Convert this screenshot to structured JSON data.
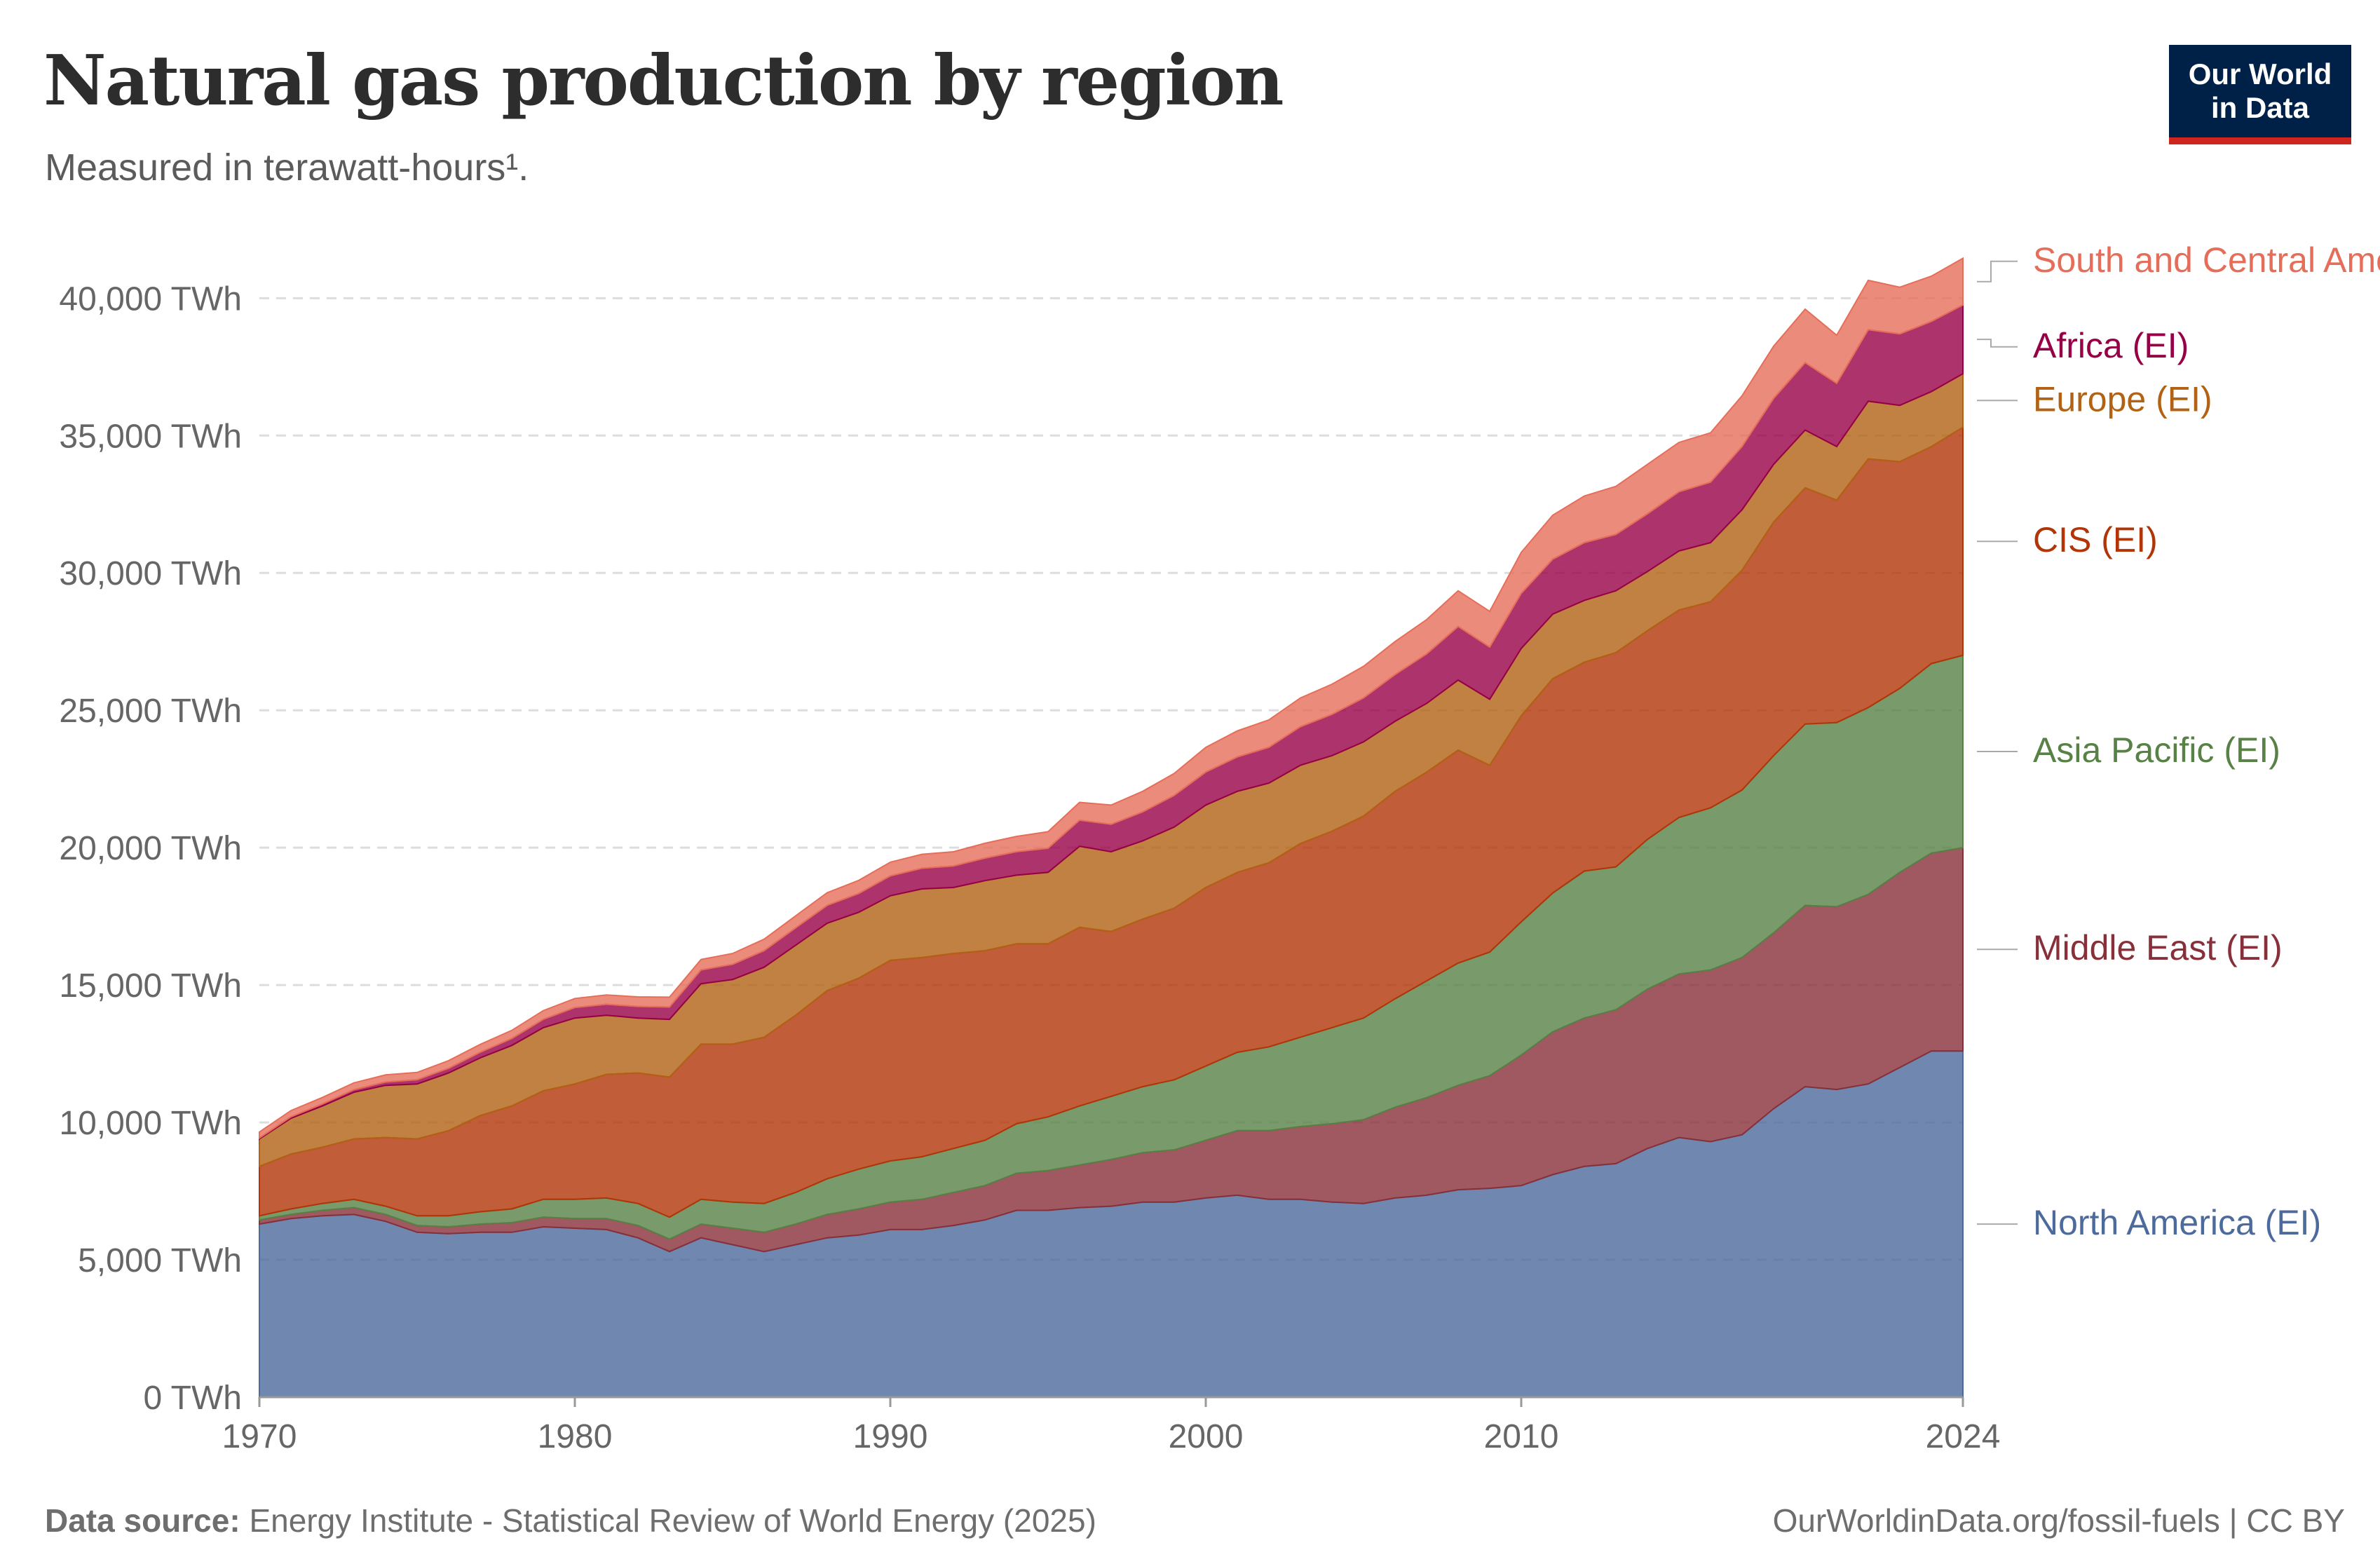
{
  "header": {
    "title": "Natural gas production by region",
    "subtitle": "Measured in terawatt-hours¹.",
    "logo_line1": "Our World",
    "logo_line2": "in Data"
  },
  "footer": {
    "source_label": "Data source:",
    "source_text": "Energy Institute - Statistical Review of World Energy (2025)",
    "url": "OurWorldinData.org/fossil-fuels | CC BY"
  },
  "chart_data": {
    "type": "area",
    "stacked": true,
    "title": "Natural gas production by region",
    "subtitle": "Measured in terawatt-hours¹.",
    "y_unit": "TWh",
    "ylim": [
      0,
      42000
    ],
    "y_ticks": [
      0,
      5000,
      10000,
      15000,
      20000,
      25000,
      30000,
      35000,
      40000
    ],
    "y_tick_labels": [
      "0 TWh",
      "5,000 TWh",
      "10,000 TWh",
      "15,000 TWh",
      "20,000 TWh",
      "25,000 TWh",
      "30,000 TWh",
      "35,000 TWh",
      "40,000 TWh"
    ],
    "xlim": [
      1970,
      2024
    ],
    "x_ticks": [
      1970,
      1980,
      1990,
      2000,
      2010,
      2024
    ],
    "x_tick_labels": [
      "1970",
      "1980",
      "1990",
      "2000",
      "2010",
      "2024"
    ],
    "grid": "horizontal-dashed",
    "legend": "right, labels aligned to series",
    "x": [
      1970,
      1971,
      1972,
      1973,
      1974,
      1975,
      1976,
      1977,
      1978,
      1979,
      1980,
      1981,
      1982,
      1983,
      1984,
      1985,
      1986,
      1987,
      1988,
      1989,
      1990,
      1991,
      1992,
      1993,
      1994,
      1995,
      1996,
      1997,
      1998,
      1999,
      2000,
      2001,
      2002,
      2003,
      2004,
      2005,
      2006,
      2007,
      2008,
      2009,
      2010,
      2011,
      2012,
      2013,
      2014,
      2015,
      2016,
      2017,
      2018,
      2019,
      2020,
      2021,
      2022,
      2023,
      2024
    ],
    "series": [
      {
        "name": "North America (EI)",
        "color": "#4c6a9c",
        "values": [
          6300,
          6500,
          6600,
          6650,
          6400,
          6000,
          5950,
          6000,
          6000,
          6200,
          6150,
          6100,
          5800,
          5300,
          5800,
          5550,
          5300,
          5550,
          5800,
          5900,
          6100,
          6100,
          6250,
          6450,
          6800,
          6800,
          6900,
          6950,
          7100,
          7100,
          7250,
          7350,
          7200,
          7200,
          7100,
          7050,
          7250,
          7350,
          7550,
          7600,
          7700,
          8100,
          8400,
          8500,
          9050,
          9450,
          9300,
          9550,
          10500,
          11300,
          11200,
          11400,
          12000,
          12600,
          12600
        ]
      },
      {
        "name": "Middle East (EI)",
        "color": "#883039",
        "values": [
          150,
          150,
          200,
          250,
          250,
          250,
          250,
          300,
          350,
          350,
          350,
          400,
          450,
          450,
          500,
          600,
          700,
          750,
          850,
          950,
          1000,
          1100,
          1200,
          1250,
          1350,
          1450,
          1550,
          1700,
          1800,
          1900,
          2100,
          2350,
          2500,
          2650,
          2850,
          3050,
          3300,
          3550,
          3800,
          4100,
          4750,
          5200,
          5400,
          5600,
          5800,
          5950,
          6250,
          6450,
          6400,
          6600,
          6650,
          6900,
          7100,
          7200,
          7400
        ]
      },
      {
        "name": "Asia Pacific (EI)",
        "color": "#578145",
        "values": [
          150,
          200,
          250,
          300,
          300,
          350,
          400,
          450,
          500,
          650,
          700,
          750,
          800,
          800,
          900,
          950,
          1050,
          1150,
          1300,
          1450,
          1500,
          1550,
          1600,
          1650,
          1800,
          1950,
          2150,
          2300,
          2400,
          2550,
          2700,
          2850,
          3050,
          3250,
          3500,
          3700,
          3950,
          4250,
          4450,
          4500,
          4850,
          5050,
          5350,
          5200,
          5450,
          5700,
          5900,
          6100,
          6450,
          6600,
          6700,
          6800,
          6700,
          6900,
          7000
        ]
      },
      {
        "name": "CIS (EI)",
        "color": "#b13507",
        "values": [
          1800,
          2000,
          2050,
          2200,
          2500,
          2800,
          3100,
          3500,
          3750,
          3950,
          4200,
          4500,
          4750,
          5100,
          5650,
          5750,
          6050,
          6450,
          6850,
          6950,
          7300,
          7250,
          7100,
          6900,
          6550,
          6300,
          6500,
          6000,
          6100,
          6250,
          6500,
          6550,
          6700,
          7050,
          7150,
          7350,
          7550,
          7600,
          7750,
          6800,
          7500,
          7800,
          7600,
          7800,
          7600,
          7550,
          7500,
          8000,
          8500,
          8600,
          8100,
          9050,
          8250,
          7900,
          8300
        ]
      },
      {
        "name": "Europe (EI)",
        "color": "#b16214",
        "values": [
          1000,
          1300,
          1500,
          1700,
          1900,
          2000,
          2100,
          2100,
          2200,
          2300,
          2400,
          2150,
          2000,
          2100,
          2200,
          2350,
          2550,
          2550,
          2450,
          2400,
          2350,
          2500,
          2400,
          2550,
          2500,
          2600,
          2950,
          2900,
          2850,
          2950,
          3000,
          2950,
          2900,
          2850,
          2750,
          2700,
          2550,
          2500,
          2550,
          2400,
          2450,
          2350,
          2250,
          2250,
          2150,
          2150,
          2150,
          2200,
          2100,
          2100,
          1950,
          2100,
          2050,
          2000,
          1950
        ]
      },
      {
        "name": "Africa (EI)",
        "color": "#970046",
        "values": [
          30,
          50,
          70,
          90,
          120,
          150,
          170,
          200,
          250,
          300,
          380,
          400,
          420,
          450,
          500,
          550,
          600,
          630,
          650,
          680,
          720,
          750,
          780,
          820,
          850,
          880,
          950,
          1000,
          1050,
          1150,
          1200,
          1250,
          1300,
          1400,
          1500,
          1600,
          1700,
          1800,
          1950,
          1900,
          2000,
          2000,
          2100,
          2050,
          2100,
          2150,
          2200,
          2300,
          2400,
          2450,
          2300,
          2600,
          2600,
          2550,
          2500
        ]
      },
      {
        "name": "South and Central America (EI)",
        "color": "#e56e5a",
        "values": [
          220,
          230,
          240,
          250,
          260,
          270,
          280,
          290,
          300,
          320,
          330,
          340,
          350,
          360,
          380,
          400,
          420,
          440,
          460,
          480,
          500,
          510,
          520,
          540,
          560,
          600,
          650,
          700,
          750,
          800,
          900,
          950,
          1000,
          1050,
          1100,
          1150,
          1200,
          1250,
          1300,
          1300,
          1500,
          1600,
          1700,
          1750,
          1800,
          1800,
          1800,
          1850,
          1900,
          1950,
          1750,
          1800,
          1700,
          1650,
          1700
        ]
      }
    ]
  }
}
